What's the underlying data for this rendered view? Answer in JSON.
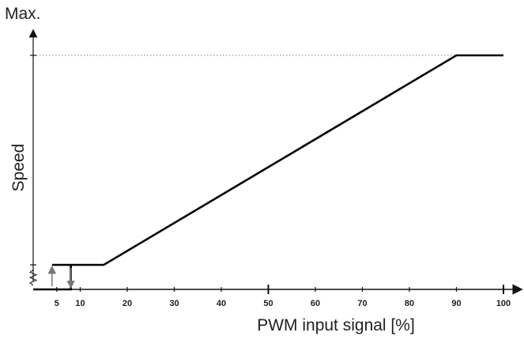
{
  "chart_data": {
    "type": "line",
    "title": "",
    "xlabel": "PWM input signal [%]",
    "ylabel": "Speed",
    "y_max_label": "Max.",
    "xlim": [
      0,
      105
    ],
    "ylim": [
      0,
      1
    ],
    "x_tick_labels": [
      5,
      10,
      20,
      30,
      40,
      50,
      60,
      70,
      80,
      90,
      100
    ],
    "x_major_ticks": [
      50,
      100
    ],
    "curve": {
      "x": [
        0,
        8,
        8,
        4,
        4,
        15,
        90,
        100
      ],
      "y": [
        0,
        0,
        0.1,
        0.1,
        0.1,
        0.1,
        1,
        1
      ]
    },
    "hysteresis": {
      "up_arrow_x": 4,
      "down_arrow_x": 8
    },
    "max_line": {
      "y": 1,
      "style": "dotted"
    },
    "colors": {
      "curve": "#000000",
      "axis": "#111111",
      "arrow": "#777777",
      "max_line": "#888888"
    },
    "grid": false,
    "legend": "none"
  }
}
